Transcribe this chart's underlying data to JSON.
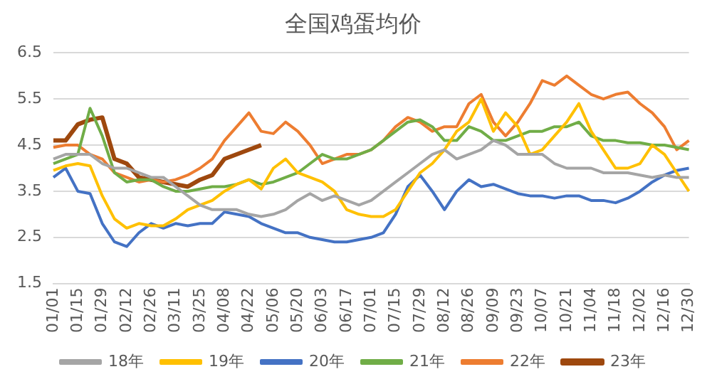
{
  "chart_data": {
    "type": "line",
    "title": "全国鸡蛋均价",
    "categories": [
      "01/01",
      null,
      "01/15",
      null,
      "01/29",
      null,
      "02/12",
      null,
      "02/26",
      null,
      "03/11",
      null,
      "03/25",
      null,
      "04/08",
      null,
      "04/22",
      null,
      "05/06",
      null,
      "05/20",
      null,
      "06/03",
      null,
      "06/17",
      null,
      "07/01",
      null,
      "07/15",
      null,
      "07/29",
      null,
      "08/12",
      null,
      "08/26",
      null,
      "09/09",
      null,
      "09/23",
      null,
      "10/07",
      null,
      "10/21",
      null,
      "11/04",
      null,
      "11/18",
      null,
      "12/02",
      null,
      "12/16",
      null,
      "12/30"
    ],
    "series": [
      {
        "name": "18年",
        "color": "#a5a5a5",
        "values": [
          4.2,
          4.3,
          4.3,
          4.3,
          4.1,
          4.0,
          4.0,
          3.9,
          3.8,
          3.8,
          3.6,
          3.4,
          3.2,
          3.1,
          3.1,
          3.1,
          3.0,
          2.95,
          3.0,
          3.1,
          3.3,
          3.45,
          3.3,
          3.4,
          3.3,
          3.2,
          3.3,
          3.5,
          3.7,
          3.9,
          4.1,
          4.3,
          4.4,
          4.2,
          4.3,
          4.4,
          4.6,
          4.5,
          4.3,
          4.3,
          4.3,
          4.1,
          4.0,
          4.0,
          4.0,
          3.9,
          3.9,
          3.9,
          3.85,
          3.8,
          3.85,
          3.8,
          3.8
        ]
      },
      {
        "name": "19年",
        "color": "#ffc000",
        "values": [
          3.95,
          4.05,
          4.1,
          4.05,
          3.4,
          2.9,
          2.7,
          2.8,
          2.75,
          2.75,
          2.9,
          3.1,
          3.2,
          3.3,
          3.5,
          3.65,
          3.75,
          3.55,
          4.0,
          4.2,
          3.9,
          3.8,
          3.7,
          3.5,
          3.1,
          3.0,
          2.95,
          2.95,
          3.1,
          3.5,
          3.9,
          4.1,
          4.4,
          4.8,
          5.0,
          5.5,
          4.8,
          5.2,
          4.9,
          4.3,
          4.4,
          4.7,
          5.0,
          5.4,
          4.8,
          4.4,
          4.0,
          4.0,
          4.1,
          4.5,
          4.3,
          3.9,
          3.5
        ]
      },
      {
        "name": "20年",
        "color": "#4472c4",
        "values": [
          3.8,
          4.0,
          3.5,
          3.45,
          2.8,
          2.4,
          2.3,
          2.6,
          2.8,
          2.7,
          2.8,
          2.75,
          2.8,
          2.8,
          3.05,
          3.0,
          2.95,
          2.8,
          2.7,
          2.6,
          2.6,
          2.5,
          2.45,
          2.4,
          2.4,
          2.45,
          2.5,
          2.6,
          3.0,
          3.6,
          3.85,
          3.5,
          3.1,
          3.5,
          3.75,
          3.6,
          3.65,
          3.55,
          3.45,
          3.4,
          3.4,
          3.35,
          3.4,
          3.4,
          3.3,
          3.3,
          3.25,
          3.35,
          3.5,
          3.7,
          3.85,
          3.95,
          4.0
        ]
      },
      {
        "name": "21年",
        "color": "#70ad47",
        "values": [
          4.1,
          4.2,
          4.3,
          5.3,
          4.7,
          3.9,
          3.7,
          3.75,
          3.75,
          3.6,
          3.5,
          3.5,
          3.55,
          3.6,
          3.6,
          3.65,
          3.75,
          3.65,
          3.7,
          3.8,
          3.9,
          4.1,
          4.3,
          4.2,
          4.2,
          4.3,
          4.4,
          4.6,
          4.8,
          5.0,
          5.05,
          4.9,
          4.6,
          4.6,
          4.9,
          4.8,
          4.6,
          4.6,
          4.7,
          4.8,
          4.8,
          4.9,
          4.9,
          5.0,
          4.7,
          4.6,
          4.6,
          4.55,
          4.55,
          4.5,
          4.5,
          4.45,
          4.4
        ]
      },
      {
        "name": "22年",
        "color": "#ed7d31",
        "values": [
          4.45,
          4.5,
          4.5,
          4.3,
          4.2,
          3.9,
          3.8,
          3.7,
          3.75,
          3.7,
          3.75,
          3.85,
          4.0,
          4.2,
          4.6,
          4.9,
          5.2,
          4.8,
          4.75,
          5.0,
          4.8,
          4.5,
          4.1,
          4.2,
          4.3,
          4.3,
          4.4,
          4.6,
          4.9,
          5.1,
          5.0,
          4.8,
          4.9,
          4.9,
          5.4,
          5.6,
          5.0,
          4.7,
          5.0,
          5.4,
          5.9,
          5.8,
          6.0,
          5.8,
          5.6,
          5.5,
          5.6,
          5.65,
          5.4,
          5.2,
          4.9,
          4.4,
          4.6
        ]
      },
      {
        "name": "23年",
        "color": "#9e480e",
        "values": [
          4.6,
          4.6,
          4.95,
          5.05,
          5.1,
          4.2,
          4.1,
          3.8,
          3.75,
          3.7,
          3.65,
          3.6,
          3.75,
          3.85,
          4.2,
          4.3,
          4.4,
          4.5,
          null,
          null,
          null,
          null,
          null,
          null,
          null,
          null,
          null,
          null,
          null,
          null,
          null,
          null,
          null,
          null,
          null,
          null,
          null,
          null,
          null,
          null,
          null,
          null,
          null,
          null,
          null,
          null,
          null,
          null,
          null,
          null,
          null,
          null,
          null
        ]
      }
    ],
    "ylim": [
      1.5,
      6.5
    ],
    "yticks": [
      1.5,
      2.5,
      3.5,
      4.5,
      5.5,
      6.5
    ],
    "grid": "y",
    "legend": "bottom",
    "marker": "none",
    "line_style": "solid"
  }
}
